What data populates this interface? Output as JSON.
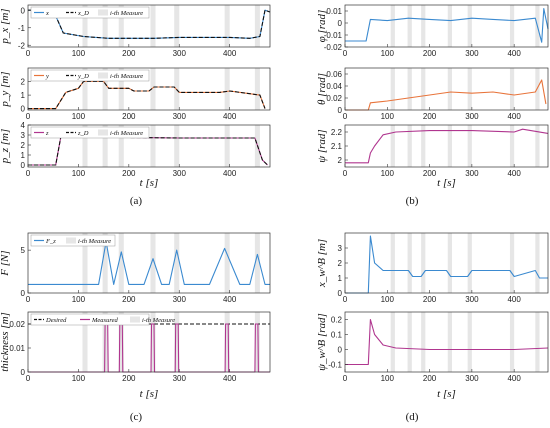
{
  "figure": {
    "captions": [
      "(a)",
      "(b)",
      "(c)",
      "(d)"
    ],
    "measure_color": "#e6e6e6",
    "measure_intervals": [
      [
        108,
        118
      ],
      [
        148,
        158
      ],
      [
        180,
        190
      ],
      [
        243,
        253
      ],
      [
        290,
        300
      ],
      [
        390,
        400
      ],
      [
        450,
        460
      ]
    ]
  },
  "chart_data": [
    {
      "id": "px",
      "type": "line",
      "ylabel": "p_x [m]",
      "xlabel": "",
      "xlim": [
        0,
        480
      ],
      "ylim": [
        -2.1,
        0.3
      ],
      "xticks": [
        0,
        100,
        200,
        300,
        400
      ],
      "yticks": [
        -2,
        -1,
        0
      ],
      "legend": [
        "x",
        "x_D",
        "i-th Measure"
      ],
      "series": [
        {
          "name": "x",
          "color": "#3b8ad0",
          "dash": false,
          "x": [
            0,
            50,
            70,
            110,
            160,
            200,
            250,
            300,
            350,
            400,
            440,
            460,
            470,
            480
          ],
          "y": [
            0.0,
            0.0,
            -1.3,
            -1.5,
            -1.6,
            -1.6,
            -1.6,
            -1.55,
            -1.55,
            -1.55,
            -1.6,
            -1.5,
            0.0,
            -0.1
          ]
        },
        {
          "name": "x_D",
          "color": "#111111",
          "dash": true,
          "x": [
            0,
            50,
            70,
            110,
            160,
            200,
            250,
            300,
            350,
            400,
            440,
            460,
            470,
            480
          ],
          "y": [
            0.0,
            0.0,
            -1.3,
            -1.5,
            -1.6,
            -1.6,
            -1.6,
            -1.55,
            -1.55,
            -1.55,
            -1.6,
            -1.5,
            0.0,
            -0.1
          ]
        }
      ]
    },
    {
      "id": "py",
      "type": "line",
      "ylabel": "p_y [m]",
      "xlabel": "",
      "xlim": [
        0,
        480
      ],
      "ylim": [
        -0.1,
        3.0
      ],
      "xticks": [
        0,
        100,
        200,
        300,
        400
      ],
      "yticks": [
        0,
        1,
        2
      ],
      "legend": [
        "y",
        "y_D",
        "i-th Measure"
      ],
      "series": [
        {
          "name": "y",
          "color": "#e8743b",
          "dash": false,
          "x": [
            0,
            55,
            75,
            100,
            110,
            150,
            160,
            200,
            210,
            240,
            250,
            290,
            300,
            380,
            400,
            440,
            460,
            470
          ],
          "y": [
            0.0,
            0.0,
            1.2,
            1.5,
            2.0,
            2.0,
            1.5,
            1.5,
            1.3,
            1.3,
            1.6,
            1.6,
            1.2,
            1.2,
            1.3,
            1.1,
            1.0,
            0.0
          ]
        },
        {
          "name": "y_D",
          "color": "#111111",
          "dash": true,
          "x": [
            0,
            55,
            75,
            100,
            110,
            150,
            160,
            200,
            210,
            240,
            250,
            290,
            300,
            380,
            400,
            440,
            460,
            470
          ],
          "y": [
            0.0,
            0.0,
            1.2,
            1.5,
            2.0,
            2.0,
            1.5,
            1.5,
            1.3,
            1.3,
            1.6,
            1.6,
            1.2,
            1.2,
            1.3,
            1.1,
            1.0,
            0.0
          ]
        }
      ]
    },
    {
      "id": "pz",
      "type": "line",
      "ylabel": "p_z [m]",
      "xlabel": "t [s]",
      "xlim": [
        0,
        480
      ],
      "ylim": [
        -0.2,
        4.0
      ],
      "xticks": [
        0,
        100,
        200,
        300,
        400
      ],
      "yticks": [
        0,
        1,
        2,
        3,
        4
      ],
      "legend": [
        "z",
        "z_D",
        "i-th Measure"
      ],
      "series": [
        {
          "name": "z",
          "color": "#b0368f",
          "dash": false,
          "x": [
            0,
            20,
            55,
            65,
            100,
            200,
            300,
            400,
            450,
            465,
            475
          ],
          "y": [
            0.0,
            0.0,
            0.0,
            2.8,
            2.8,
            2.75,
            2.7,
            2.7,
            2.7,
            0.5,
            0.0
          ]
        },
        {
          "name": "z_D",
          "color": "#111111",
          "dash": true,
          "x": [
            0,
            20,
            55,
            65,
            100,
            200,
            300,
            400,
            450,
            465,
            475
          ],
          "y": [
            0.0,
            0.0,
            0.0,
            2.8,
            2.8,
            2.75,
            2.7,
            2.7,
            2.7,
            0.5,
            0.0
          ]
        }
      ]
    },
    {
      "id": "phi",
      "type": "line",
      "ylabel": "φ [rad]",
      "xlabel": "",
      "xlim": [
        0,
        480
      ],
      "ylim": [
        -0.02,
        0.015
      ],
      "xticks": [
        0,
        100,
        200,
        300,
        400
      ],
      "yticks": [
        -0.02,
        -0.01,
        0,
        0.01
      ],
      "legend": [],
      "series": [
        {
          "name": "",
          "color": "#3b8ad0",
          "dash": false,
          "x": [
            0,
            50,
            60,
            100,
            150,
            200,
            250,
            300,
            350,
            400,
            450,
            465,
            470,
            480
          ],
          "y": [
            -0.015,
            -0.015,
            0.003,
            0.002,
            0.004,
            0.003,
            0.002,
            0.004,
            0.003,
            0.002,
            0.004,
            -0.016,
            0.012,
            -0.005
          ]
        }
      ]
    },
    {
      "id": "theta",
      "type": "line",
      "ylabel": "θ [rad]",
      "xlabel": "",
      "xlim": [
        0,
        480
      ],
      "ylim": [
        0.0,
        0.07
      ],
      "xticks": [
        0,
        100,
        200,
        300,
        400
      ],
      "yticks": [
        0,
        0.02,
        0.04,
        0.06
      ],
      "legend": [],
      "series": [
        {
          "name": "",
          "color": "#e8743b",
          "dash": false,
          "x": [
            0,
            55,
            60,
            100,
            150,
            200,
            250,
            300,
            350,
            400,
            450,
            465,
            475
          ],
          "y": [
            0.0,
            0.0,
            0.012,
            0.015,
            0.02,
            0.025,
            0.03,
            0.028,
            0.03,
            0.025,
            0.03,
            0.05,
            0.01
          ]
        }
      ]
    },
    {
      "id": "psi",
      "type": "line",
      "ylabel": "ψ [rad]",
      "xlabel": "t [s]",
      "xlim": [
        0,
        480
      ],
      "ylim": [
        1.95,
        2.25
      ],
      "xticks": [
        0,
        100,
        200,
        300,
        400
      ],
      "yticks": [
        2.0,
        2.1,
        2.2
      ],
      "legend": [],
      "series": [
        {
          "name": "",
          "color": "#b0368f",
          "dash": false,
          "x": [
            0,
            55,
            60,
            70,
            90,
            120,
            200,
            300,
            400,
            420,
            480
          ],
          "y": [
            1.98,
            1.98,
            2.05,
            2.1,
            2.18,
            2.2,
            2.21,
            2.21,
            2.2,
            2.22,
            2.19
          ]
        }
      ]
    },
    {
      "id": "F",
      "type": "line",
      "ylabel": "F [N]",
      "xlabel": "",
      "xlim": [
        0,
        480
      ],
      "ylim": [
        0,
        7
      ],
      "xticks": [
        0,
        100,
        200,
        300,
        400
      ],
      "yticks": [
        0,
        5
      ],
      "legend": [
        "F_z",
        "i-th Measure"
      ],
      "series": [
        {
          "name": "F_z",
          "color": "#3b8ad0",
          "dash": false,
          "x": [
            0,
            100,
            140,
            155,
            170,
            185,
            200,
            230,
            248,
            265,
            280,
            295,
            310,
            360,
            390,
            420,
            440,
            455,
            470,
            480
          ],
          "y": [
            1.0,
            1.0,
            1.0,
            6.0,
            1.0,
            4.8,
            1.0,
            1.0,
            4.0,
            1.0,
            1.0,
            5.0,
            1.0,
            1.0,
            5.2,
            1.0,
            1.0,
            4.5,
            1.0,
            1.0
          ]
        }
      ]
    },
    {
      "id": "thickness",
      "type": "line",
      "ylabel": "thickness [m]",
      "xlabel": "t [s]",
      "xlim": [
        0,
        480
      ],
      "ylim": [
        0,
        0.025
      ],
      "xticks": [
        0,
        100,
        200,
        300,
        400
      ],
      "yticks": [
        0,
        0.01,
        0.02
      ],
      "legend": [
        "Desired",
        "Measured",
        "i-th Measure"
      ],
      "series": [
        {
          "name": "Desired",
          "color": "#111111",
          "dash": true,
          "x": [
            0,
            480
          ],
          "y": [
            0.02,
            0.02
          ]
        },
        {
          "name": "Measured",
          "color": "#b0368f",
          "dash": false,
          "x": [
            0,
            152,
            153,
            158,
            159,
            181,
            182,
            187,
            188,
            244,
            245,
            250,
            251,
            292,
            293,
            298,
            299,
            391,
            392,
            397,
            398,
            450,
            451,
            456,
            457,
            480
          ],
          "y": [
            0,
            0,
            0.02,
            0.02,
            0,
            0,
            0.02,
            0.02,
            0,
            0,
            0.02,
            0.02,
            0,
            0,
            0.02,
            0.02,
            0,
            0,
            0.02,
            0.02,
            0,
            0,
            0.02,
            0.02,
            0,
            0
          ]
        }
      ]
    },
    {
      "id": "xw",
      "type": "line",
      "ylabel": "x_w^B [m]",
      "xlabel": "",
      "xlim": [
        0,
        480
      ],
      "ylim": [
        0,
        4
      ],
      "xticks": [
        0,
        100,
        200,
        300,
        400
      ],
      "yticks": [
        0,
        1,
        2,
        3
      ],
      "legend": [],
      "series": [
        {
          "name": "",
          "color": "#3b8ad0",
          "dash": false,
          "x": [
            0,
            55,
            60,
            70,
            90,
            120,
            150,
            160,
            180,
            190,
            240,
            250,
            290,
            300,
            390,
            400,
            450,
            460,
            480
          ],
          "y": [
            0,
            0,
            3.8,
            2.0,
            1.5,
            1.5,
            1.5,
            1.1,
            1.1,
            1.5,
            1.5,
            1.1,
            1.1,
            1.5,
            1.5,
            1.1,
            1.5,
            1.0,
            1.0
          ]
        }
      ]
    },
    {
      "id": "psiw",
      "type": "line",
      "ylabel": "ψ_w^B [rad]",
      "xlabel": "t [s]",
      "xlim": [
        0,
        480
      ],
      "ylim": [
        -0.15,
        0.25
      ],
      "xticks": [
        0,
        100,
        200,
        300,
        400
      ],
      "yticks": [
        -0.1,
        0,
        0.1,
        0.2
      ],
      "legend": [],
      "series": [
        {
          "name": "",
          "color": "#b0368f",
          "dash": false,
          "x": [
            0,
            55,
            60,
            70,
            90,
            120,
            200,
            300,
            400,
            480
          ],
          "y": [
            -0.1,
            -0.1,
            0.2,
            0.1,
            0.03,
            0.01,
            0.0,
            0.0,
            0.0,
            0.01
          ]
        }
      ]
    }
  ]
}
